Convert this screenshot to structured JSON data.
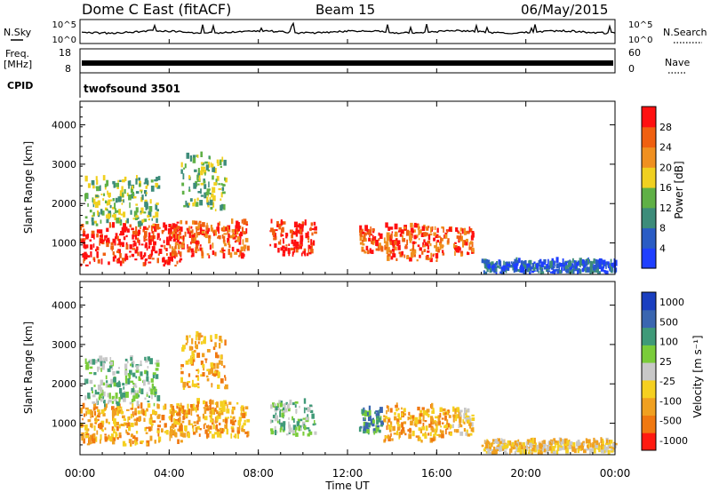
{
  "header": {
    "station": "Dome C East (fitACF)",
    "beam": "Beam 15",
    "date": "06/May/2015"
  },
  "aux_panels": {
    "nsky_label": "N.Sky",
    "nsky_ticks": [
      "10^5",
      "10^0"
    ],
    "nsearch_label": "N.Search",
    "nsearch_ticks": [
      "10^5",
      "10^0"
    ],
    "freq_label": "Freq.",
    "freq_unit": "[MHz]",
    "freq_ticks": [
      "18",
      "8"
    ],
    "nave_label": "Nave",
    "nave_ticks": [
      "60",
      "0"
    ],
    "cpid_label": "CPID",
    "cpid_value": "twofsound 3501"
  },
  "time_axis": {
    "label": "Time UT",
    "ticks": [
      "00:00",
      "04:00",
      "08:00",
      "12:00",
      "16:00",
      "20:00",
      "00:00"
    ]
  },
  "colors": {
    "power": [
      "#1f3fff",
      "#2a5cc4",
      "#3d8c7a",
      "#5fb046",
      "#f0d020",
      "#f09020",
      "#f06010",
      "#ff1010"
    ],
    "velocity": [
      "#1a3fc0",
      "#3a66b0",
      "#3f9a78",
      "#7acc3a",
      "#c8c8c8",
      "#f5d020",
      "#f0a020",
      "#f07810",
      "#ff1a10"
    ]
  },
  "chart_data": [
    {
      "type": "heatmap",
      "name": "power",
      "ylabel": "Slant Range [km]",
      "yticks": [
        "1000",
        "2000",
        "3000",
        "4000"
      ],
      "ylim": [
        200,
        4600
      ],
      "xlim": [
        0,
        24
      ],
      "colorbar_label": "Power [dB]",
      "colorbar_ticks": [
        "4",
        "8",
        "12",
        "16",
        "20",
        "24",
        "28"
      ],
      "clim": [
        0,
        32
      ],
      "echo_regions": [
        {
          "t0": 0.0,
          "t1": 4.6,
          "r0": 400,
          "r1": 1400,
          "level": 28
        },
        {
          "t0": 0.2,
          "t1": 3.5,
          "r0": 1400,
          "r1": 2600,
          "level": 14
        },
        {
          "t0": 4.0,
          "t1": 7.5,
          "r0": 600,
          "r1": 1500,
          "level": 26
        },
        {
          "t0": 4.5,
          "t1": 6.5,
          "r0": 1800,
          "r1": 3200,
          "level": 14
        },
        {
          "t0": 8.5,
          "t1": 10.5,
          "r0": 650,
          "r1": 1500,
          "level": 28
        },
        {
          "t0": 12.5,
          "t1": 13.5,
          "r0": 700,
          "r1": 1300,
          "level": 24
        },
        {
          "t0": 13.6,
          "t1": 16.6,
          "r0": 500,
          "r1": 1400,
          "level": 26
        },
        {
          "t0": 16.7,
          "t1": 17.6,
          "r0": 650,
          "r1": 1300,
          "level": 24
        },
        {
          "t0": 18.0,
          "t1": 24.0,
          "r0": 200,
          "r1": 500,
          "level": 6
        }
      ]
    },
    {
      "type": "heatmap",
      "name": "velocity",
      "ylabel": "Slant Range [km]",
      "yticks": [
        "1000",
        "2000",
        "3000",
        "4000"
      ],
      "ylim": [
        200,
        4600
      ],
      "xlim": [
        0,
        24
      ],
      "colorbar_label": "Velocity [m s⁻¹]",
      "colorbar_ticks": [
        "1000",
        "500",
        "100",
        "25",
        "-25",
        "-100",
        "-500",
        "-1000"
      ],
      "echo_regions": [
        {
          "t0": 0.0,
          "t1": 4.6,
          "r0": 400,
          "r1": 1400,
          "level": -150
        },
        {
          "t0": 0.2,
          "t1": 3.5,
          "r0": 1400,
          "r1": 2600,
          "level": 60
        },
        {
          "t0": 4.0,
          "t1": 7.5,
          "r0": 600,
          "r1": 1500,
          "level": -250
        },
        {
          "t0": 4.5,
          "t1": 6.5,
          "r0": 1800,
          "r1": 3200,
          "level": -350
        },
        {
          "t0": 8.5,
          "t1": 10.5,
          "r0": 650,
          "r1": 1500,
          "level": 80
        },
        {
          "t0": 12.5,
          "t1": 13.5,
          "r0": 700,
          "r1": 1300,
          "level": 300
        },
        {
          "t0": 13.6,
          "t1": 16.6,
          "r0": 500,
          "r1": 1400,
          "level": -250
        },
        {
          "t0": 16.7,
          "t1": 17.6,
          "r0": 650,
          "r1": 1300,
          "level": -100
        },
        {
          "t0": 18.0,
          "t1": 24.0,
          "r0": 200,
          "r1": 500,
          "level": -40
        }
      ]
    }
  ]
}
